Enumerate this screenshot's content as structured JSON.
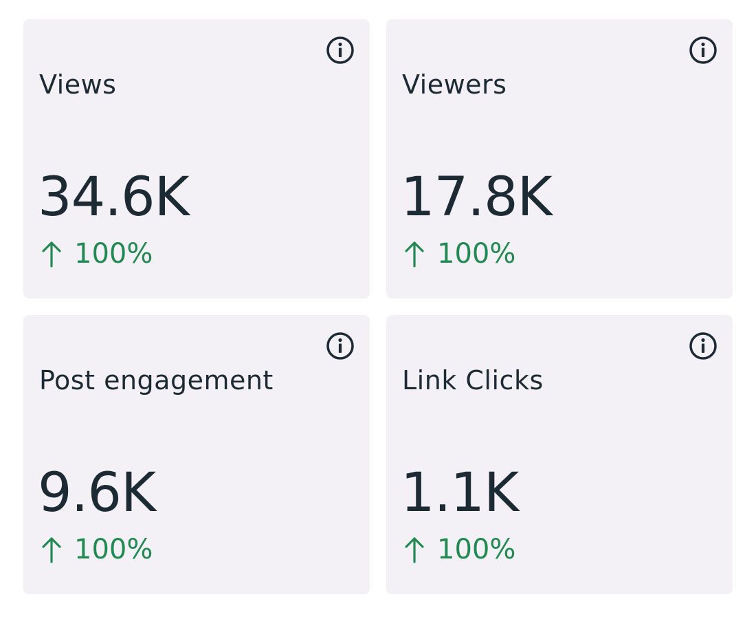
{
  "cards": [
    {
      "label": "Views",
      "value": "34.6K",
      "change": "100%",
      "change_icon": "arrow-up-icon",
      "info_icon": "info-icon"
    },
    {
      "label": "Viewers",
      "value": "17.8K",
      "change": "100%",
      "change_icon": "arrow-up-icon",
      "info_icon": "info-icon"
    },
    {
      "label": "Post engagement",
      "value": "9.6K",
      "change": "100%",
      "change_icon": "arrow-up-icon",
      "info_icon": "info-icon"
    },
    {
      "label": "Link Clicks",
      "value": "1.1K",
      "change": "100%",
      "change_icon": "arrow-up-icon",
      "info_icon": "info-icon"
    }
  ],
  "colors": {
    "card_background": "#f3f1f5",
    "text_primary": "#1c2b33",
    "positive_change": "#1f8a51"
  }
}
